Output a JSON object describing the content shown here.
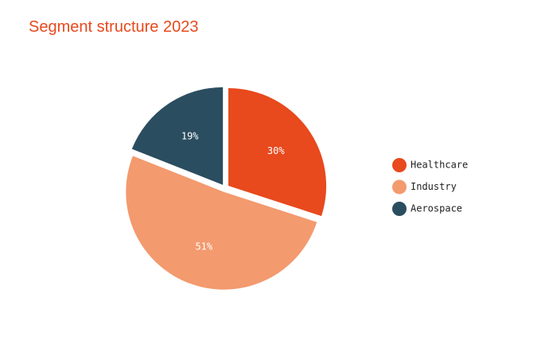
{
  "chart_data": {
    "type": "pie",
    "title": "Segment structure 2023",
    "categories": [
      "Healthcare",
      "Industry",
      "Aerospace"
    ],
    "values": [
      30,
      51,
      19
    ],
    "value_labels": [
      "30%",
      "51%",
      "19%"
    ],
    "colors": [
      "#e8491d",
      "#f39a6e",
      "#2b4d60"
    ],
    "legend": "right"
  }
}
